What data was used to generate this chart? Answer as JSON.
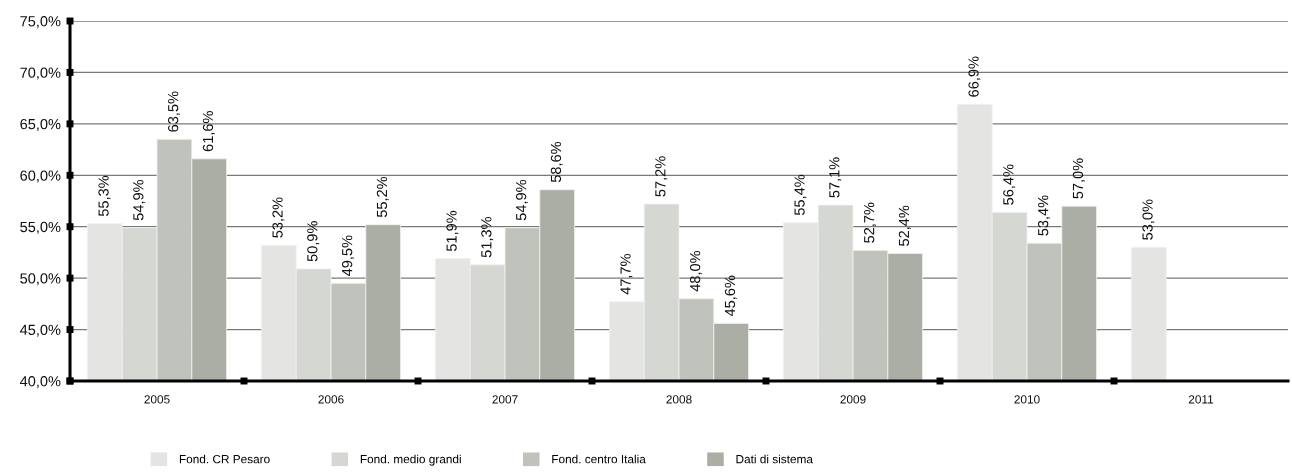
{
  "chart_data": {
    "type": "bar",
    "categories": [
      "2005",
      "2006",
      "2007",
      "2008",
      "2009",
      "2010",
      "2011"
    ],
    "series": [
      {
        "name": "Fond. CR Pesaro",
        "color": "#e4e4e2",
        "values": [
          55.3,
          53.2,
          51.9,
          47.7,
          55.4,
          66.9,
          53.0
        ],
        "value_labels": [
          "55,3%",
          "53,2%",
          "51,9%",
          "47,7%",
          "55,4%",
          "66,9%",
          "53,0%"
        ]
      },
      {
        "name": "Fond. medio grandi",
        "color": "#d5d7d2",
        "values": [
          54.9,
          50.9,
          51.3,
          57.2,
          57.1,
          56.4,
          null
        ],
        "value_labels": [
          "54,9%",
          "50,9%",
          "51,3%",
          "57,2%",
          "57,1%",
          "56,4%",
          null
        ]
      },
      {
        "name": "Fond. centro Italia",
        "color": "#c0c3bb",
        "values": [
          63.5,
          49.5,
          54.9,
          48.0,
          52.7,
          53.4,
          null
        ],
        "value_labels": [
          "63,5%",
          "49,5%",
          "54,9%",
          "48,0%",
          "52,7%",
          "53,4%",
          null
        ]
      },
      {
        "name": "Dati di sistema",
        "color": "#abaea5",
        "values": [
          61.6,
          55.2,
          58.6,
          45.6,
          52.4,
          57.0,
          null
        ],
        "value_labels": [
          "61,6%",
          "55,2%",
          "58,6%",
          "45,6%",
          "52,4%",
          "57,0%",
          null
        ]
      }
    ],
    "ylim": [
      40,
      75
    ],
    "yticks": [
      {
        "value": 40,
        "label": "40,0%"
      },
      {
        "value": 45,
        "label": "45,0%"
      },
      {
        "value": 50,
        "label": "50,0%"
      },
      {
        "value": 55,
        "label": "55,0%"
      },
      {
        "value": 60,
        "label": "60,0%"
      },
      {
        "value": 65,
        "label": "65,0%"
      },
      {
        "value": 70,
        "label": "70,0%"
      },
      {
        "value": 75,
        "label": "75,0%"
      }
    ],
    "grid": "y",
    "legend": "bottom"
  }
}
